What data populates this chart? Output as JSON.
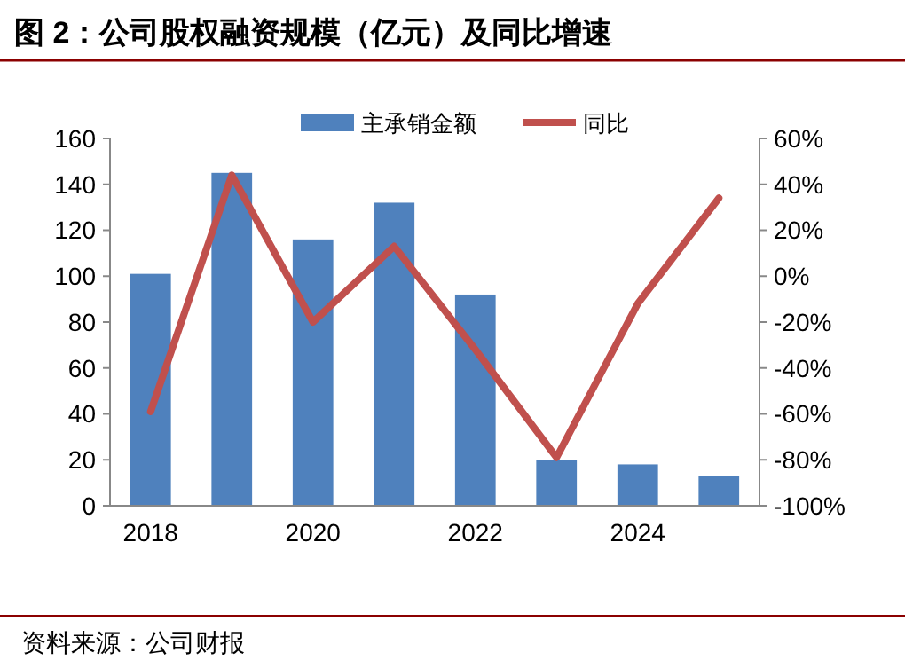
{
  "chart_data": {
    "type": "bar",
    "title": "图 2：公司股权融资规模（亿元）及同比增速",
    "categories": [
      "2018",
      null,
      "2020",
      null,
      "2022",
      null,
      "2024",
      null
    ],
    "series": [
      {
        "name": "主承销金额",
        "color": "#4f81bd",
        "values": [
          101,
          145,
          116,
          132,
          92,
          20,
          18,
          13
        ]
      },
      {
        "name": "同比",
        "type": "line",
        "axis": "y2",
        "color": "#c0504d",
        "values": [
          -59,
          44,
          -20,
          13,
          -32,
          -79,
          -12,
          34
        ]
      }
    ],
    "ylim": [
      0,
      160
    ],
    "yticks": [
      0,
      20,
      40,
      60,
      80,
      100,
      120,
      140,
      160
    ],
    "y2lim": [
      -100,
      60
    ],
    "y2ticks": [
      {
        "value": -100,
        "label": "-100%"
      },
      {
        "value": -80,
        "label": "-80%"
      },
      {
        "value": -60,
        "label": "-60%"
      },
      {
        "value": -40,
        "label": "-40%"
      },
      {
        "value": -20,
        "label": "-20%"
      },
      {
        "value": 0,
        "label": "0%"
      },
      {
        "value": 20,
        "label": "20%"
      },
      {
        "value": 40,
        "label": "40%"
      },
      {
        "value": 60,
        "label": "60%"
      }
    ],
    "legend": "top",
    "grid": false,
    "annotations": [
      "资料来源：公司财报"
    ]
  }
}
